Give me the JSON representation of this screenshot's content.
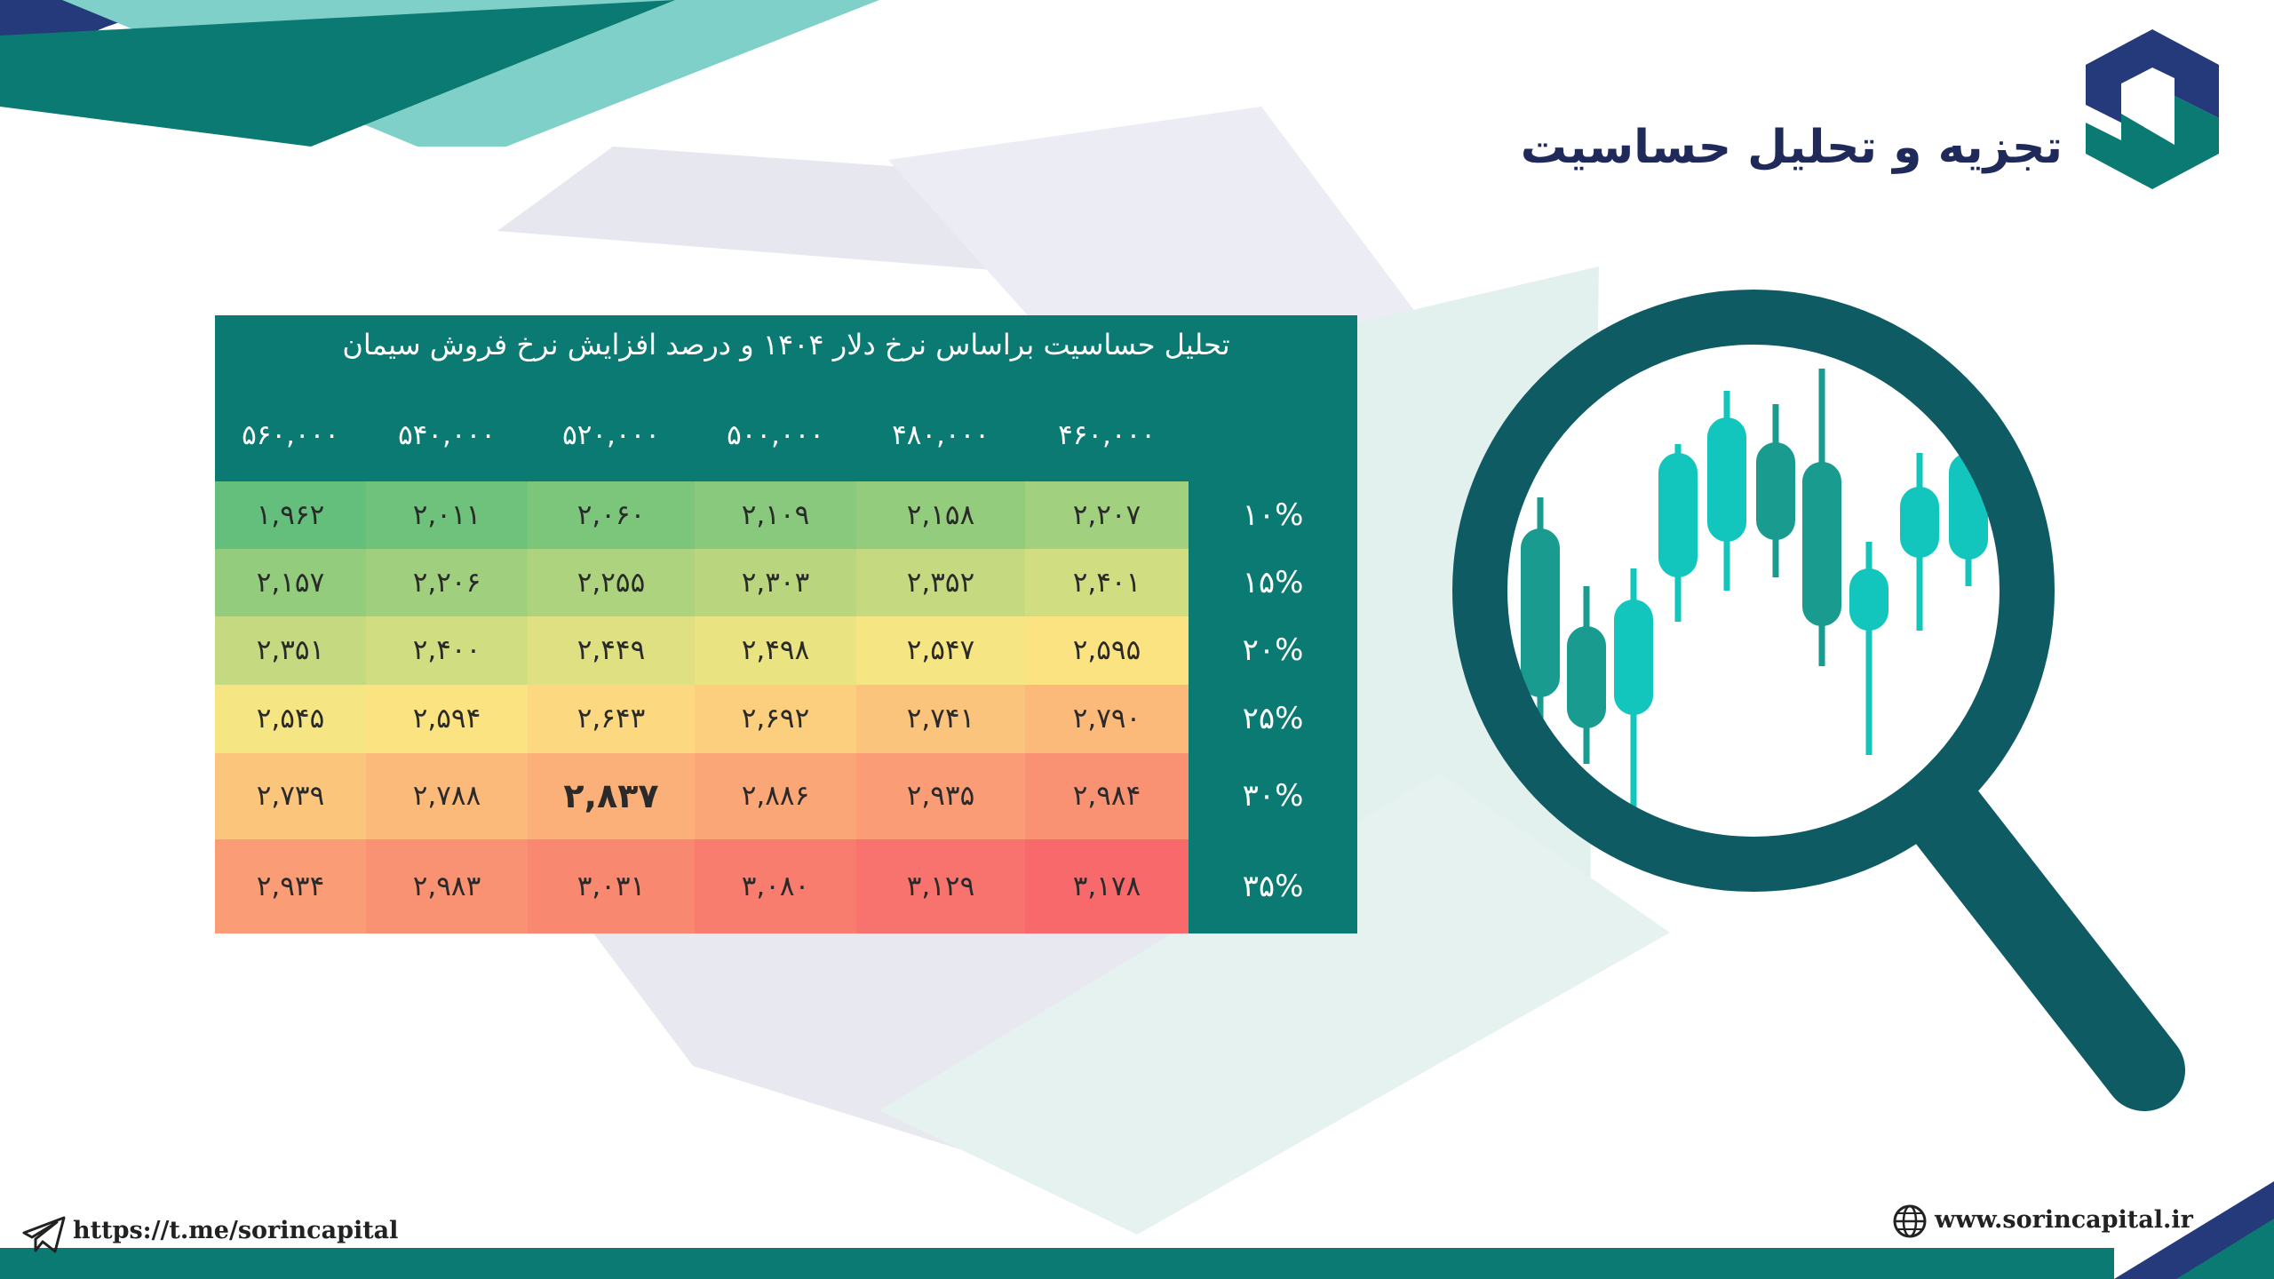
{
  "header": {
    "title": "تجزیه و تحلیل حساسیت"
  },
  "colors": {
    "teal_dark": "#0b7a72",
    "teal_deep": "#0e5b63",
    "teal_light": "#7fd0c8",
    "navy": "#243a7a",
    "grid_green": "#63bf7b",
    "grid_yellow": "#fce883",
    "grid_red": "#f8696b"
  },
  "chart_data": {
    "type": "table",
    "title": "تحلیل حساسیت براساس نرخ دلار ۱۴۰۴ و درصد افزایش نرخ فروش سیمان",
    "columns": [
      "۴۶۰,۰۰۰",
      "۴۸۰,۰۰۰",
      "۵۰۰,۰۰۰",
      "۵۲۰,۰۰۰",
      "۵۴۰,۰۰۰",
      "۵۶۰,۰۰۰"
    ],
    "rows": [
      "۱۰%",
      "۱۵%",
      "۲۰%",
      "۲۵%",
      "۳۰%",
      "۳۵%"
    ],
    "values": [
      [
        "۲,۲۰۷",
        "۲,۱۵۸",
        "۲,۱۰۹",
        "۲,۰۶۰",
        "۲,۰۱۱",
        "۱,۹۶۲"
      ],
      [
        "۲,۴۰۱",
        "۲,۳۵۲",
        "۲,۳۰۳",
        "۲,۲۵۵",
        "۲,۲۰۶",
        "۲,۱۵۷"
      ],
      [
        "۲,۵۹۵",
        "۲,۵۴۷",
        "۲,۴۹۸",
        "۲,۴۴۹",
        "۲,۴۰۰",
        "۲,۳۵۱"
      ],
      [
        "۲,۷۹۰",
        "۲,۷۴۱",
        "۲,۶۹۲",
        "۲,۶۴۳",
        "۲,۵۹۴",
        "۲,۵۴۵"
      ],
      [
        "۲,۹۸۴",
        "۲,۹۳۵",
        "۲,۸۸۶",
        "۲,۸۳۷",
        "۲,۷۸۸",
        "۲,۷۳۹"
      ],
      [
        "۳,۱۷۸",
        "۳,۱۲۹",
        "۳,۰۸۰",
        "۳,۰۳۱",
        "۲,۹۸۳",
        "۲,۹۳۴"
      ]
    ],
    "numeric_values": [
      [
        2207,
        2158,
        2109,
        2060,
        2011,
        1962
      ],
      [
        2401,
        2352,
        2303,
        2255,
        2206,
        2157
      ],
      [
        2595,
        2547,
        2498,
        2449,
        2400,
        2351
      ],
      [
        2790,
        2741,
        2692,
        2643,
        2594,
        2545
      ],
      [
        2984,
        2935,
        2886,
        2837,
        2788,
        2739
      ],
      [
        3178,
        3129,
        3080,
        3031,
        2983,
        2934
      ]
    ],
    "highlight": {
      "row": 4,
      "col": 3
    },
    "color_scale": "green-yellow-red"
  },
  "footer": {
    "telegram": "https://t.me/sorincapital",
    "website": "www.sorincapital.ir"
  },
  "icons": {
    "logo": "sorin-capital-logo",
    "telegram": "telegram-icon",
    "globe": "globe-icon",
    "magnifier": "magnifier-candlestick-icon"
  }
}
